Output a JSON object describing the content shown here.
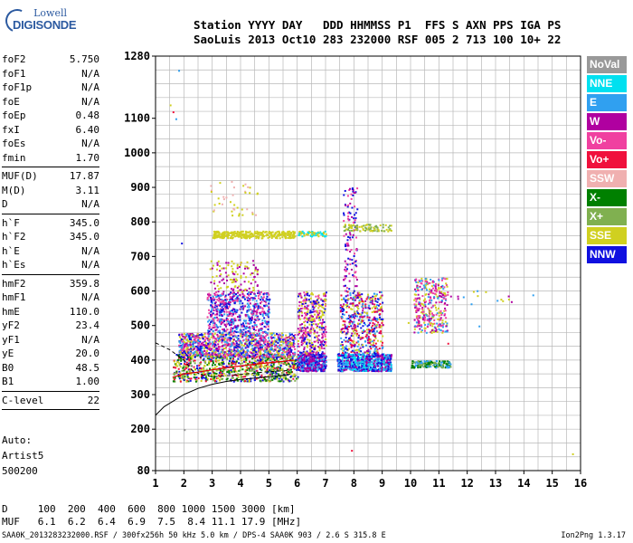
{
  "logo": {
    "line1": "Lowell",
    "line2": "DIGISONDE"
  },
  "header": {
    "line1": "Station YYYY DAY   DDD HHMMSS P1  FFS S AXN PPS IGA PS",
    "line2": "SaoLuis 2013 Oct10 283 232000 RSF 005 2 713 100 10+ 22"
  },
  "params": [
    {
      "k": "foF2",
      "v": "5.750"
    },
    {
      "k": "foF1",
      "v": "N/A"
    },
    {
      "k": "foF1p",
      "v": "N/A"
    },
    {
      "k": "foE",
      "v": "N/A"
    },
    {
      "k": "foEp",
      "v": "0.48"
    },
    {
      "k": "fxI",
      "v": "6.40"
    },
    {
      "k": "foEs",
      "v": "N/A"
    },
    {
      "k": "fmin",
      "v": "1.70"
    },
    {
      "sep": true
    },
    {
      "k": "MUF(D)",
      "v": "17.87"
    },
    {
      "k": "M(D)",
      "v": "3.11"
    },
    {
      "k": "D",
      "v": "N/A"
    },
    {
      "sep": true
    },
    {
      "k": "h`F",
      "v": "345.0"
    },
    {
      "k": "h`F2",
      "v": "345.0"
    },
    {
      "k": "h`E",
      "v": "N/A"
    },
    {
      "k": "h`Es",
      "v": "N/A"
    },
    {
      "sep": true
    },
    {
      "k": "hmF2",
      "v": "359.8"
    },
    {
      "k": "hmF1",
      "v": "N/A"
    },
    {
      "k": "hmE",
      "v": "110.0"
    },
    {
      "k": "yF2",
      "v": "23.4"
    },
    {
      "k": "yF1",
      "v": "N/A"
    },
    {
      "k": "yE",
      "v": "20.0"
    },
    {
      "k": "B0",
      "v": "48.5"
    },
    {
      "k": "B1",
      "v": "1.00"
    },
    {
      "sep": true
    },
    {
      "k": "C-level",
      "v": "22"
    },
    {
      "sep": true
    }
  ],
  "auto": {
    "line1": "Auto:",
    "line2": "Artist5",
    "line3": "500200"
  },
  "muf_table": {
    "d_row": "D     100  200  400  600  800 1000 1500 3000 [km]",
    "muf_row": "MUF   6.1  6.2  6.4  6.9  7.5  8.4 11.1 17.9 [MHz]"
  },
  "footer": {
    "left": "SAA0K_2013283232000.RSF / 300fx256h 50 kHz 5.0 km / DPS-4 SAA0K 903 / 2.6 S 315.8 E",
    "version": "Ion2Png 1.3.17"
  },
  "legend": [
    {
      "label": "NoVal",
      "color": "#999999"
    },
    {
      "label": "NNE",
      "color": "#00e0f0"
    },
    {
      "label": "E",
      "color": "#30a0f0"
    },
    {
      "label": "W",
      "color": "#b000a0"
    },
    {
      "label": "Vo-",
      "color": "#f040a0"
    },
    {
      "label": "Vo+",
      "color": "#f0103c"
    },
    {
      "label": "SSW",
      "color": "#f0b0b0"
    },
    {
      "label": "X-",
      "color": "#008000"
    },
    {
      "label": "X+",
      "color": "#80b050"
    },
    {
      "label": "SSE",
      "color": "#d0d020"
    },
    {
      "label": "NNW",
      "color": "#1010e0"
    }
  ],
  "chart_data": {
    "type": "scatter",
    "title": "",
    "xlabel": "",
    "ylabel": "",
    "xlim": [
      1,
      16
    ],
    "ylim": [
      80,
      1280
    ],
    "x_ticks": [
      1,
      2,
      3,
      4,
      5,
      6,
      7,
      8,
      9,
      10,
      11,
      12,
      13,
      14,
      15,
      16
    ],
    "x_minor_step": 0.5,
    "y_grid_step": 40,
    "y_tick_labels": [
      {
        "value": 1280,
        "label": "1280"
      },
      {
        "value": 1100,
        "label": "1100"
      },
      {
        "value": 1000,
        "label": "1000"
      },
      {
        "value": 900,
        "label": "900"
      },
      {
        "value": 800,
        "label": "800"
      },
      {
        "value": 700,
        "label": "700"
      },
      {
        "value": 600,
        "label": "600"
      },
      {
        "value": 500,
        "label": "500"
      },
      {
        "value": 400,
        "label": "400"
      },
      {
        "value": 300,
        "label": "300"
      },
      {
        "value": 200,
        "label": "200"
      },
      {
        "value": 80,
        "label": "80"
      }
    ],
    "grid": true,
    "clusters": [
      {
        "x": [
          1.6,
          6.0
        ],
        "y": [
          340,
          420
        ],
        "n": 900,
        "colors": [
          "#008000",
          "#f0103c",
          "#80b050",
          "#1010e0",
          "#d0d020"
        ]
      },
      {
        "x": [
          1.8,
          5.9
        ],
        "y": [
          410,
          480
        ],
        "n": 1100,
        "colors": [
          "#d0d020",
          "#30a0f0",
          "#b000a0",
          "#1010e0",
          "#f040a0"
        ]
      },
      {
        "x": [
          2.8,
          5.0
        ],
        "y": [
          480,
          600
        ],
        "n": 600,
        "colors": [
          "#b000a0",
          "#30a0f0",
          "#f040a0",
          "#1010e0"
        ]
      },
      {
        "x": [
          2.9,
          4.6
        ],
        "y": [
          600,
          690
        ],
        "n": 120,
        "colors": [
          "#d0d020",
          "#b000a0"
        ]
      },
      {
        "x": [
          3.0,
          5.9
        ],
        "y": [
          755,
          775
        ],
        "n": 320,
        "colors": [
          "#d0d020"
        ]
      },
      {
        "x": [
          2.9,
          4.6
        ],
        "y": [
          820,
          920
        ],
        "n": 40,
        "colors": [
          "#d0d020",
          "#f0b0b0"
        ]
      },
      {
        "x": [
          6.0,
          7.0
        ],
        "y": [
          370,
          420
        ],
        "n": 400,
        "colors": [
          "#30a0f0",
          "#1010e0",
          "#b000a0"
        ]
      },
      {
        "x": [
          6.0,
          7.0
        ],
        "y": [
          420,
          600
        ],
        "n": 380,
        "colors": [
          "#d0d020",
          "#b000a0",
          "#f040a0",
          "#1010e0"
        ]
      },
      {
        "x": [
          6.0,
          7.0
        ],
        "y": [
          760,
          775
        ],
        "n": 70,
        "colors": [
          "#00e0f0",
          "#d0d020"
        ]
      },
      {
        "x": [
          7.4,
          9.3
        ],
        "y": [
          370,
          420
        ],
        "n": 700,
        "colors": [
          "#1010e0",
          "#30a0f0",
          "#00e0f0",
          "#b000a0"
        ]
      },
      {
        "x": [
          7.5,
          9.0
        ],
        "y": [
          420,
          600
        ],
        "n": 500,
        "colors": [
          "#d0d020",
          "#b000a0",
          "#f0103c",
          "#1010e0",
          "#30a0f0"
        ]
      },
      {
        "x": [
          7.6,
          8.1
        ],
        "y": [
          600,
          900
        ],
        "n": 120,
        "colors": [
          "#b000a0",
          "#1010e0",
          "#f040a0"
        ]
      },
      {
        "x": [
          7.6,
          9.3
        ],
        "y": [
          775,
          795
        ],
        "n": 90,
        "colors": [
          "#d0d020",
          "#80b050"
        ]
      },
      {
        "x": [
          10.0,
          11.4
        ],
        "y": [
          380,
          400
        ],
        "n": 160,
        "colors": [
          "#008000",
          "#80b050",
          "#30a0f0"
        ]
      },
      {
        "x": [
          10.1,
          11.3
        ],
        "y": [
          480,
          640
        ],
        "n": 350,
        "colors": [
          "#d0d020",
          "#f040a0",
          "#b000a0",
          "#30a0f0"
        ]
      },
      {
        "x": [
          11.0,
          13.6
        ],
        "y": [
          560,
          610
        ],
        "n": 16,
        "colors": [
          "#b000a0",
          "#d0d020",
          "#30a0f0"
        ]
      }
    ],
    "sparse_points": [
      {
        "x": 1.5,
        "y": 1140,
        "c": "#d0d020"
      },
      {
        "x": 1.7,
        "y": 1100,
        "c": "#30a0f0"
      },
      {
        "x": 1.8,
        "y": 1240,
        "c": "#30a0f0"
      },
      {
        "x": 1.6,
        "y": 1120,
        "c": "#f0103c"
      },
      {
        "x": 1.9,
        "y": 740,
        "c": "#1010e0"
      },
      {
        "x": 7.9,
        "y": 140,
        "c": "#f0103c"
      },
      {
        "x": 15.7,
        "y": 130,
        "c": "#d0d020"
      },
      {
        "x": 2.0,
        "y": 200,
        "c": "#999999"
      },
      {
        "x": 11.3,
        "y": 450,
        "c": "#f0103c"
      },
      {
        "x": 12.4,
        "y": 500,
        "c": "#30a0f0"
      },
      {
        "x": 14.3,
        "y": 590,
        "c": "#30a0f0"
      },
      {
        "x": 9.9,
        "y": 510,
        "c": "#d0d020"
      }
    ],
    "profile_curve": {
      "x": [
        1.0,
        1.3,
        1.6,
        2.0,
        2.5,
        3.0,
        3.5,
        4.0,
        4.5,
        5.0,
        5.4,
        5.7,
        5.75
      ],
      "y": [
        240,
        265,
        280,
        300,
        318,
        330,
        338,
        344,
        348,
        352,
        355,
        358,
        360
      ]
    },
    "dashed_curve": {
      "x": [
        1.0,
        1.5,
        2.0,
        2.3,
        2.6,
        3.0,
        3.6,
        4.2,
        4.8,
        5.3,
        5.75
      ],
      "y": [
        450,
        430,
        400,
        370,
        358,
        352,
        355,
        360,
        365,
        368,
        370
      ]
    },
    "trace_curve": {
      "x": [
        1.6,
        2.0,
        2.5,
        3.0,
        3.5,
        4.0,
        4.5,
        5.0,
        5.5,
        5.9
      ],
      "y": [
        350,
        360,
        365,
        372,
        378,
        383,
        388,
        392,
        396,
        400
      ]
    }
  }
}
